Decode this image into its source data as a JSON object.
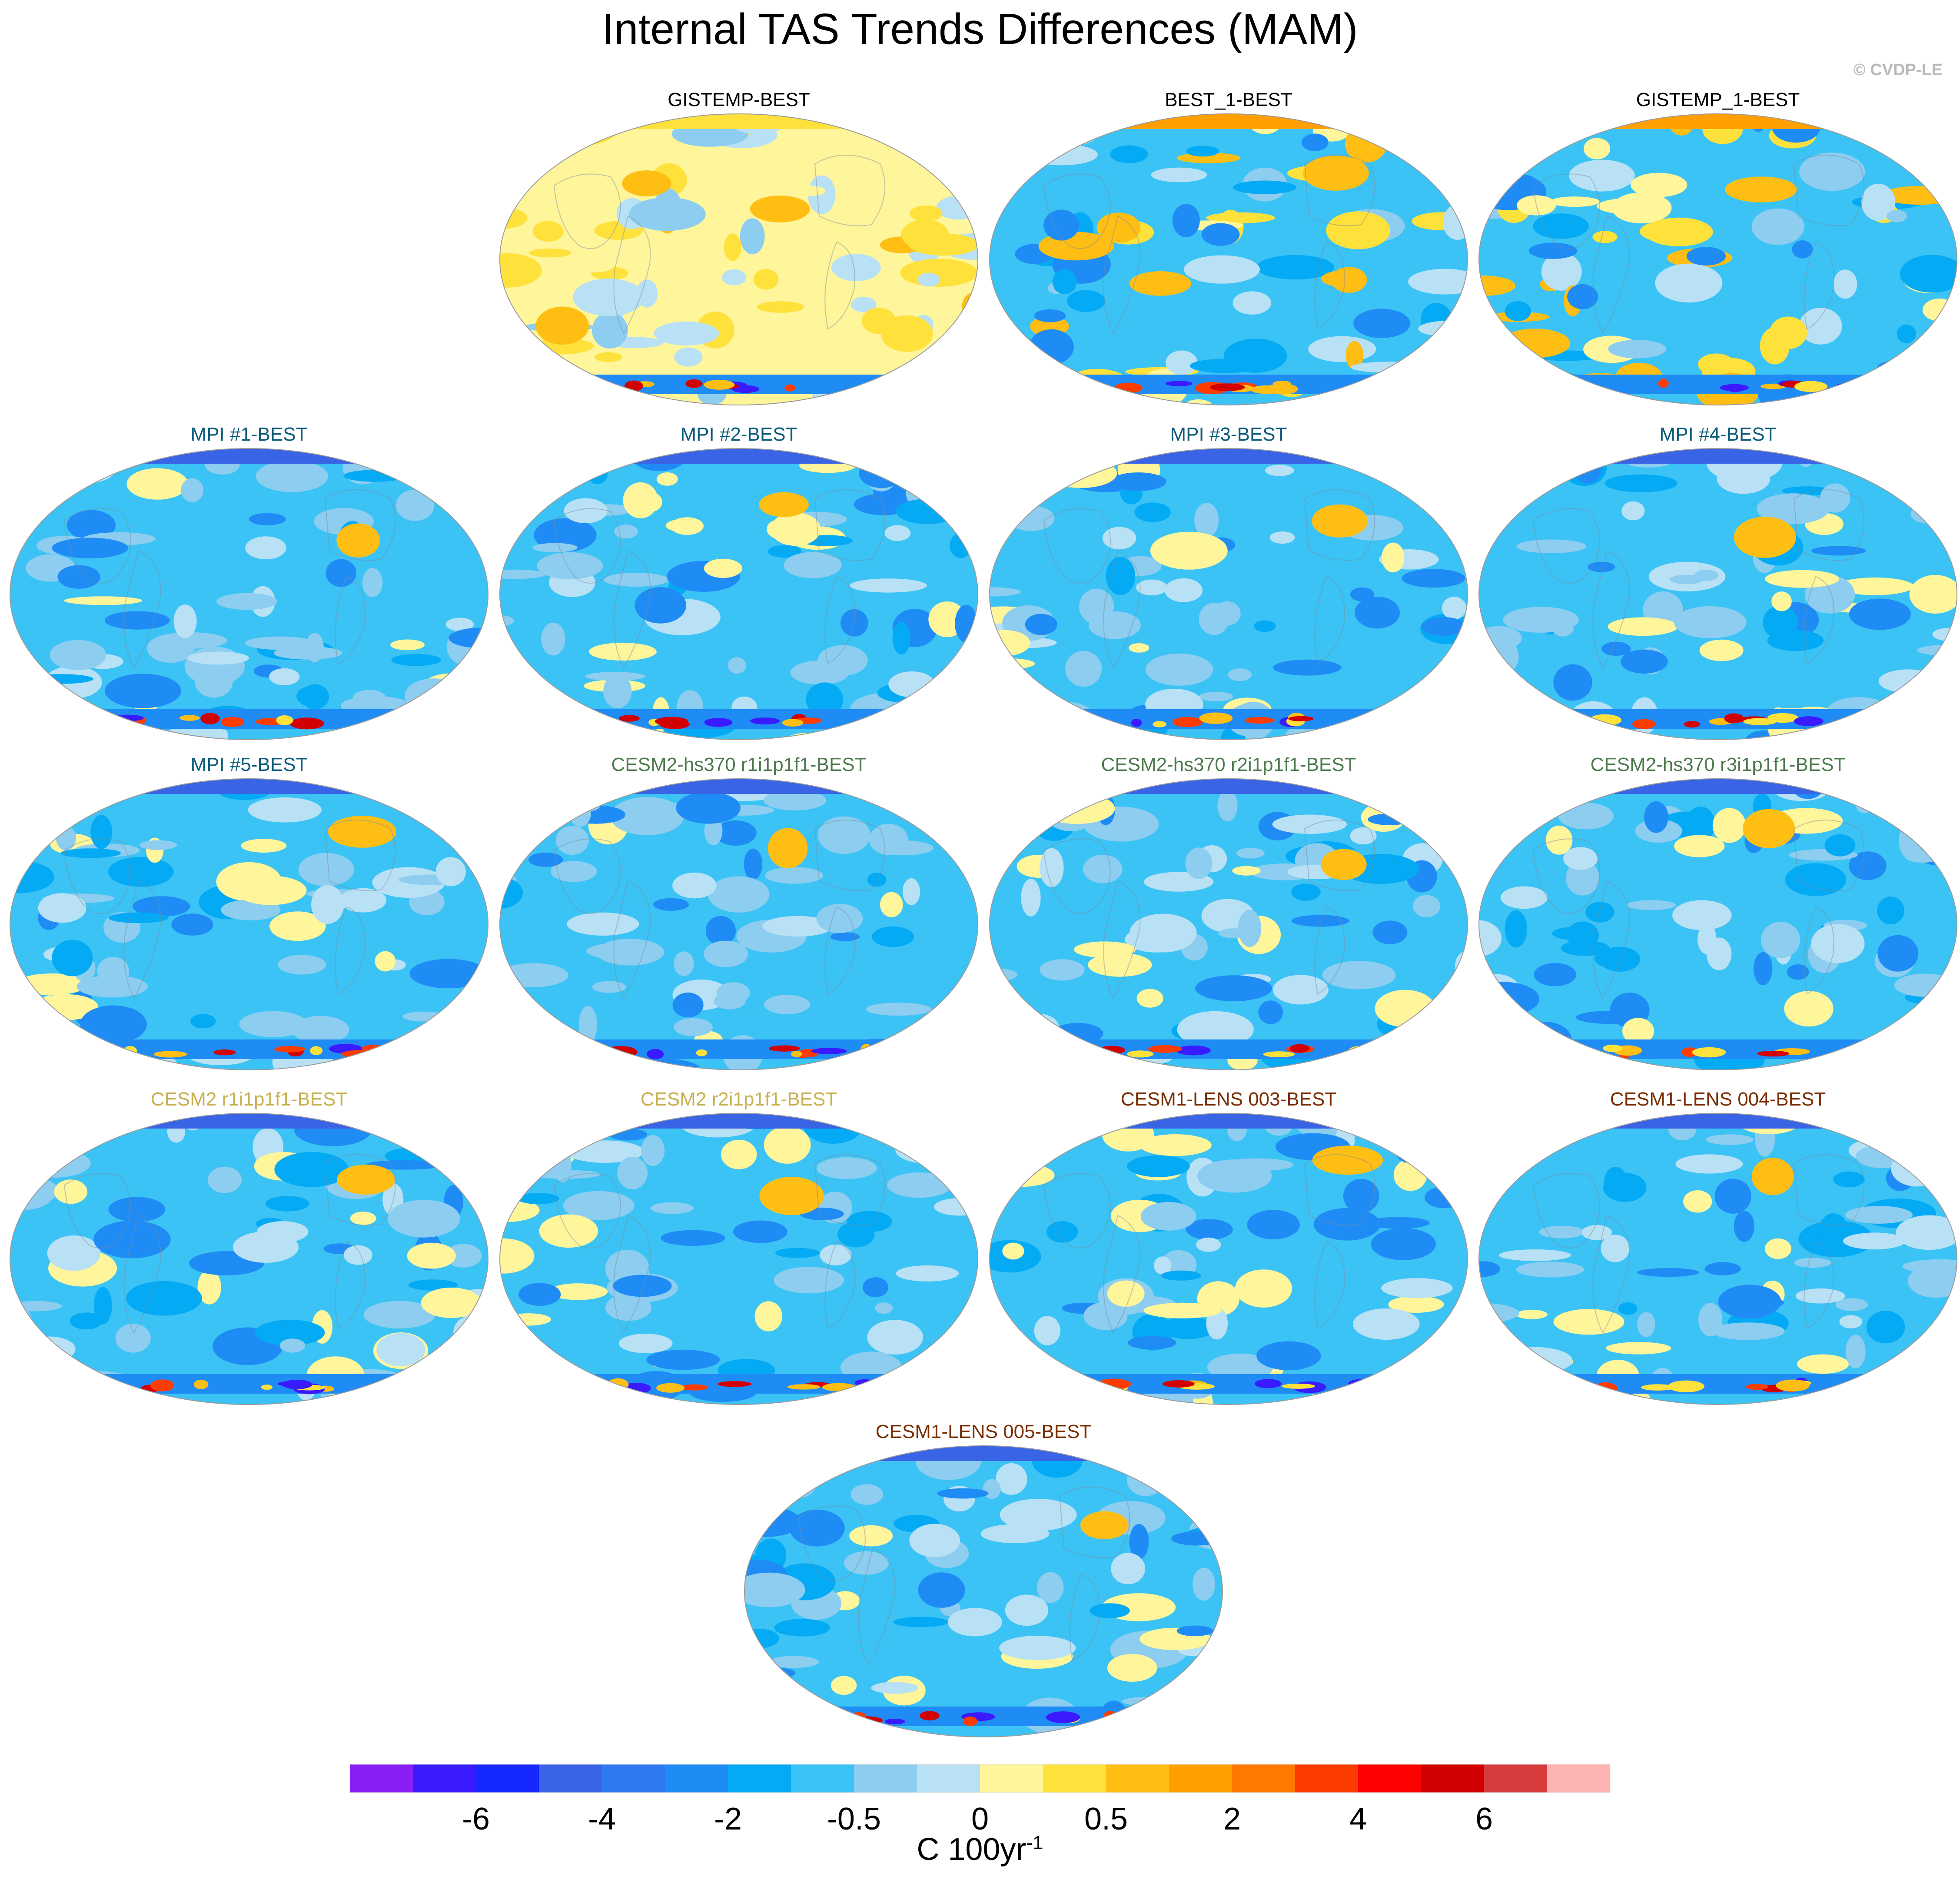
{
  "title": "Internal TAS Trends Differences (MAM)",
  "copyright": "© CVDP-LE",
  "colors": {
    "obs_title": "#000000",
    "mpi_title": "#0a5a7a",
    "hs370_title": "#4d7a4d",
    "cesm2_title": "#c8b050",
    "lens_title": "#7a2e00"
  },
  "chart_data": {
    "type": "heatmap",
    "projection": "Robinson-like global map",
    "panels": [
      {
        "label": "GISTEMP-BEST",
        "group": "obs",
        "anomaly": "warm"
      },
      {
        "label": "BEST_1-BEST",
        "group": "obs",
        "anomaly": "mixed"
      },
      {
        "label": "GISTEMP_1-BEST",
        "group": "obs",
        "anomaly": "mixed"
      },
      {
        "label": "MPI #1-BEST",
        "group": "mpi",
        "anomaly": "cool"
      },
      {
        "label": "MPI #2-BEST",
        "group": "mpi",
        "anomaly": "cool"
      },
      {
        "label": "MPI #3-BEST",
        "group": "mpi",
        "anomaly": "cool"
      },
      {
        "label": "MPI #4-BEST",
        "group": "mpi",
        "anomaly": "cool"
      },
      {
        "label": "MPI #5-BEST",
        "group": "mpi",
        "anomaly": "cool"
      },
      {
        "label": "CESM2-hs370 r1i1p1f1-BEST",
        "group": "hs370",
        "anomaly": "cool"
      },
      {
        "label": "CESM2-hs370 r2i1p1f1-BEST",
        "group": "hs370",
        "anomaly": "cool"
      },
      {
        "label": "CESM2-hs370 r3i1p1f1-BEST",
        "group": "hs370",
        "anomaly": "cool"
      },
      {
        "label": "CESM2 r1i1p1f1-BEST",
        "group": "cesm2",
        "anomaly": "cool"
      },
      {
        "label": "CESM2 r2i1p1f1-BEST",
        "group": "cesm2",
        "anomaly": "cool"
      },
      {
        "label": "CESM1-LENS 003-BEST",
        "group": "lens",
        "anomaly": "cool"
      },
      {
        "label": "CESM1-LENS 004-BEST",
        "group": "lens",
        "anomaly": "cool"
      },
      {
        "label": "CESM1-LENS 005-BEST",
        "group": "lens",
        "anomaly": "cool"
      }
    ],
    "colorbar": {
      "colors": [
        "#8a1ff5",
        "#3a1aff",
        "#1428ff",
        "#3a64e6",
        "#2f78f0",
        "#1f8cf5",
        "#05aaf5",
        "#3cc3f5",
        "#8ccdf0",
        "#b9e1f5",
        "#fff59b",
        "#ffe13c",
        "#ffbe14",
        "#ffa000",
        "#ff7800",
        "#ff3c00",
        "#ff0000",
        "#d20000",
        "#d73c3c",
        "#ffb4b4"
      ],
      "tick_labels": [
        "-6",
        "-4",
        "-2",
        "-0.5",
        "0",
        "0.5",
        "2",
        "4",
        "6"
      ],
      "unit_text": "C 100yr",
      "unit_exponent": "-1"
    }
  }
}
